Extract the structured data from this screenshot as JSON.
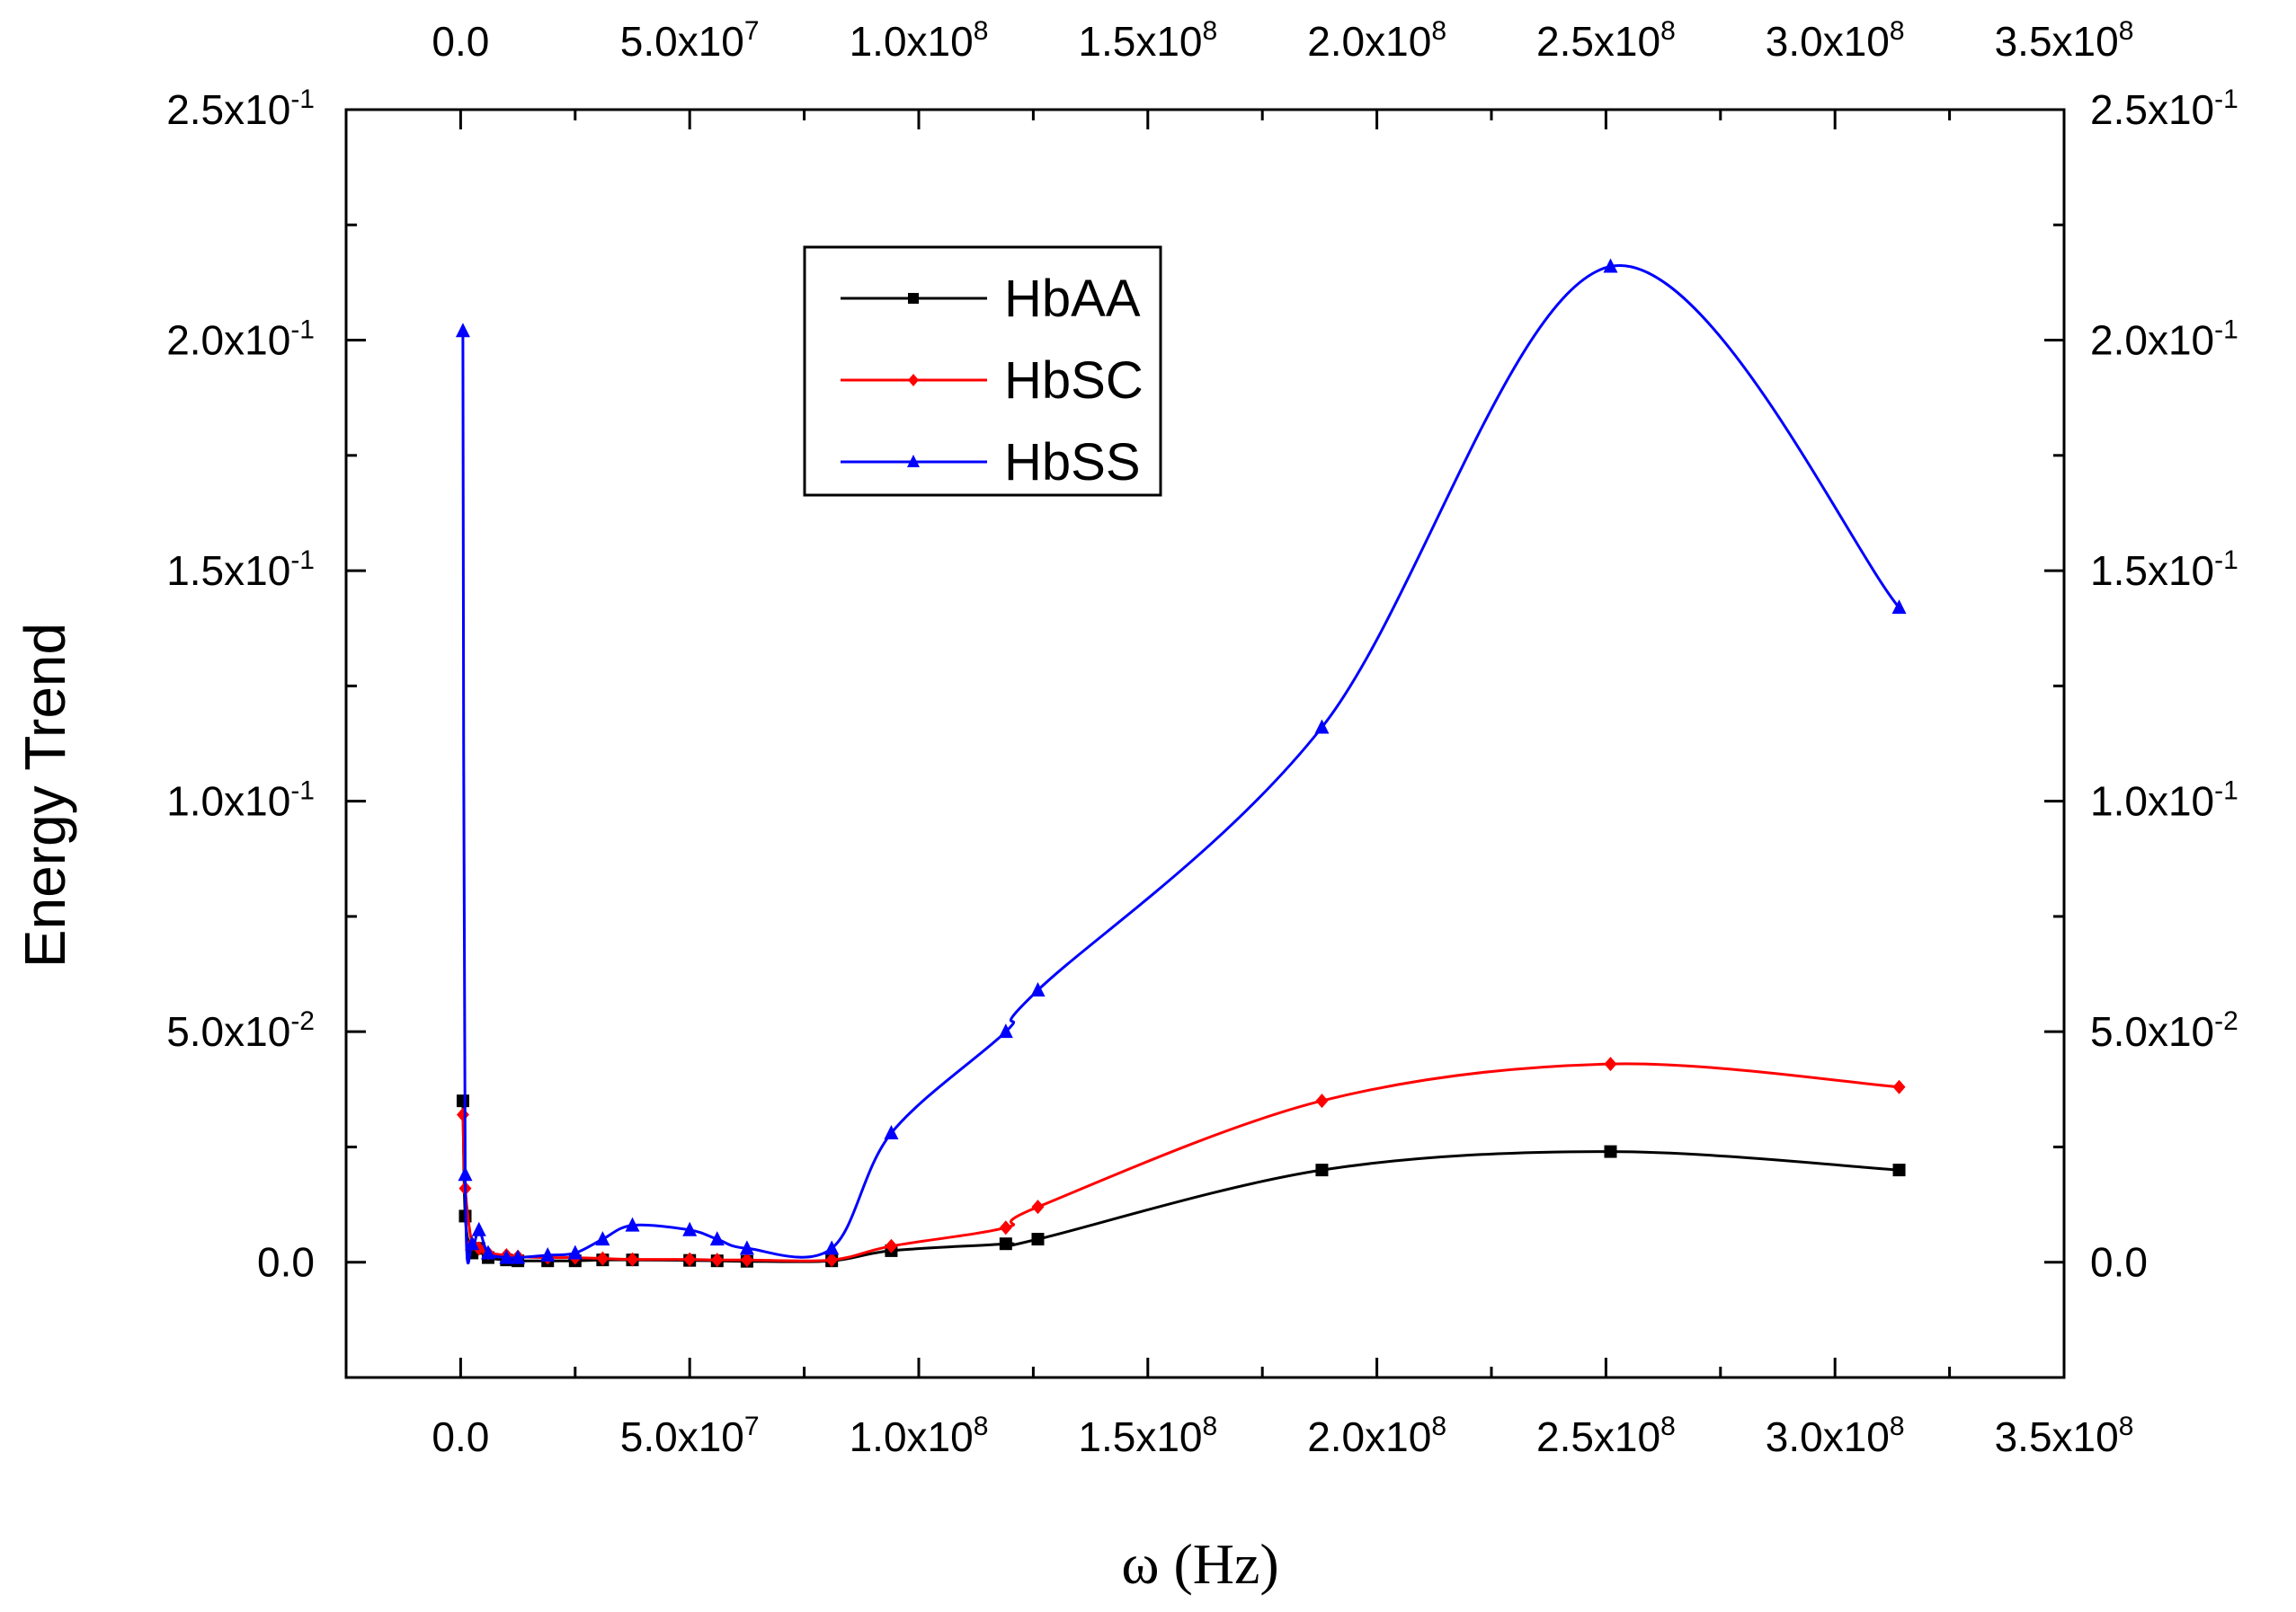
{
  "chart_data": {
    "type": "line",
    "title": "",
    "xlabel": "ω (Hz)",
    "ylabel": "Energy Trend",
    "xlim": [
      -25000000,
      350000000
    ],
    "ylim": [
      -0.025,
      0.25
    ],
    "x_ticks": [
      {
        "value": 0,
        "mant": "0.0",
        "exp": ""
      },
      {
        "value": 50000000,
        "mant": "5.0x10",
        "exp": "7"
      },
      {
        "value": 100000000,
        "mant": "1.0x10",
        "exp": "8"
      },
      {
        "value": 150000000,
        "mant": "1.5x10",
        "exp": "8"
      },
      {
        "value": 200000000,
        "mant": "2.0x10",
        "exp": "8"
      },
      {
        "value": 250000000,
        "mant": "2.5x10",
        "exp": "8"
      },
      {
        "value": 300000000,
        "mant": "3.0x10",
        "exp": "8"
      },
      {
        "value": 350000000,
        "mant": "3.5x10",
        "exp": "8"
      }
    ],
    "y_ticks": [
      {
        "value": 0,
        "mant": "0.0",
        "exp": ""
      },
      {
        "value": 0.05,
        "mant": "5.0x10",
        "exp": "-2"
      },
      {
        "value": 0.1,
        "mant": "1.0x10",
        "exp": "-1"
      },
      {
        "value": 0.15,
        "mant": "1.5x10",
        "exp": "-1"
      },
      {
        "value": 0.2,
        "mant": "2.0x10",
        "exp": "-1"
      },
      {
        "value": 0.25,
        "mant": "2.5x10",
        "exp": "-1"
      }
    ],
    "legend_position": "upper-left-center",
    "series": [
      {
        "name": "HbAA",
        "color": "#000000",
        "marker": "square",
        "x": [
          500000,
          1000000,
          2500000,
          4000000,
          6000000,
          10000000,
          12500000,
          19000000,
          25000000,
          31000000,
          37500000,
          50000000,
          56000000,
          62500000,
          81000000,
          94000000,
          119000000,
          126000000,
          188000000,
          251000000,
          314000000
        ],
        "y": [
          0.035,
          0.01,
          0.002,
          0.003,
          0.001,
          0.0005,
          0.0003,
          0.0003,
          0.0003,
          0.0005,
          0.0005,
          0.0004,
          0.0003,
          0.0002,
          0.0003,
          0.0025,
          0.004,
          0.005,
          0.02,
          0.024,
          0.02
        ]
      },
      {
        "name": "HbSC",
        "color": "#ff0000",
        "marker": "diamond",
        "x": [
          500000,
          1000000,
          2500000,
          4000000,
          6000000,
          10000000,
          12500000,
          19000000,
          25000000,
          31000000,
          37500000,
          50000000,
          56000000,
          62500000,
          81000000,
          94000000,
          119000000,
          126000000,
          188000000,
          251000000,
          314000000
        ],
        "y": [
          0.032,
          0.016,
          0.004,
          0.003,
          0.002,
          0.0015,
          0.0012,
          0.001,
          0.001,
          0.0008,
          0.0006,
          0.0006,
          0.0005,
          0.0005,
          0.0005,
          0.0035,
          0.0075,
          0.012,
          0.035,
          0.043,
          0.038
        ]
      },
      {
        "name": "HbSS",
        "color": "#0000ff",
        "marker": "triangle",
        "x": [
          500000,
          1000000,
          2500000,
          4000000,
          6000000,
          10000000,
          12500000,
          19000000,
          25000000,
          31000000,
          37500000,
          50000000,
          56000000,
          62500000,
          81000000,
          94000000,
          119000000,
          126000000,
          188000000,
          251000000,
          314000000
        ],
        "y": [
          0.202,
          0.019,
          0.004,
          0.007,
          0.002,
          0.001,
          0.001,
          0.0015,
          0.002,
          0.005,
          0.008,
          0.007,
          0.005,
          0.003,
          0.003,
          0.028,
          0.05,
          0.059,
          0.116,
          0.216,
          0.142
        ]
      }
    ]
  }
}
